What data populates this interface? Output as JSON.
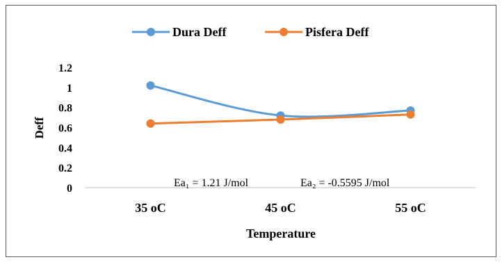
{
  "chart_data": {
    "type": "line",
    "title": "",
    "xlabel": "Temperature",
    "ylabel": "Deff",
    "categories": [
      "35 oC",
      "45 oC",
      "55 oC"
    ],
    "ylim": [
      0,
      1.2
    ],
    "yticks": [
      "0",
      "0.2",
      "0.4",
      "0.6",
      "0.8",
      "1",
      "1.2"
    ],
    "legend_position": "top",
    "grid": false,
    "series": [
      {
        "name": "Dura Deff",
        "color": "#5b9bd5",
        "values": [
          1.02,
          0.72,
          0.77
        ]
      },
      {
        "name": "Pisfera Deff",
        "color": "#ed7d31",
        "values": [
          0.64,
          0.68,
          0.73
        ]
      }
    ],
    "annotations": [
      {
        "text": "Ea₁ = 1.21 J/mol"
      },
      {
        "text": "Ea₂ = -0.5595 J/mol"
      }
    ]
  }
}
